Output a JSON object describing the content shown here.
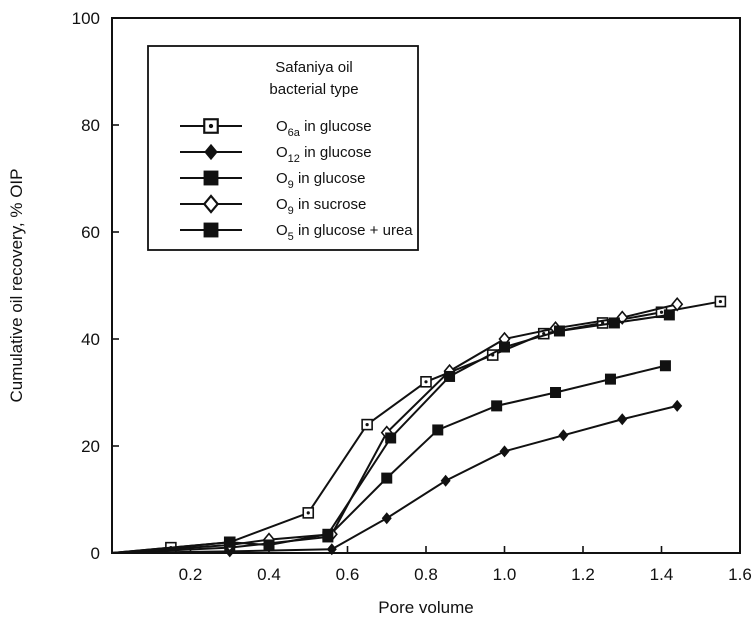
{
  "chart_data": {
    "type": "line",
    "xlabel": "Pore volume",
    "ylabel": "Cumulative oil recovery, % OIP",
    "xlim": [
      0,
      1.6
    ],
    "ylim": [
      0,
      100
    ],
    "xticks": [
      0.2,
      0.4,
      0.6,
      0.8,
      1.0,
      1.2,
      1.4,
      1.6
    ],
    "xtick_labels": [
      "0.2",
      "0.4",
      "0.6",
      "0.8",
      "1.0",
      "1.2",
      "1.4",
      "1.6"
    ],
    "yticks": [
      0,
      20,
      40,
      60,
      80,
      100
    ],
    "ytick_labels": [
      "0",
      "20",
      "40",
      "60",
      "80",
      "100"
    ],
    "grid": false,
    "legend": {
      "placement": "top-left",
      "title_line1": "Safaniya oil",
      "title_line2": "bacterial type",
      "entries": [
        {
          "prefix": "O",
          "sub": "6a",
          "suffix": " in glucose",
          "marker": "square-open-dot"
        },
        {
          "prefix": "O",
          "sub": "12",
          "suffix": " in glucose",
          "marker": "diamond-filled"
        },
        {
          "prefix": "O",
          "sub": "9",
          "suffix": " in glucose",
          "marker": "square-filled"
        },
        {
          "prefix": "O",
          "sub": "9",
          "suffix": " in sucrose",
          "marker": "diamond-open"
        },
        {
          "prefix": "O",
          "sub": "5",
          "suffix": " in glucose + urea",
          "marker": "square-filled"
        }
      ]
    },
    "series": [
      {
        "marker": "square-open-dot",
        "x": [
          0.0,
          0.15,
          0.3,
          0.5,
          0.65,
          0.8,
          0.97,
          1.1,
          1.25,
          1.4,
          1.55
        ],
        "y": [
          0,
          1,
          2,
          7.5,
          24,
          32,
          37,
          41,
          43,
          45,
          47
        ]
      },
      {
        "marker": "diamond-filled",
        "x": [
          0.0,
          0.3,
          0.56,
          0.7,
          0.85,
          1.0,
          1.15,
          1.3,
          1.44
        ],
        "y": [
          0,
          0.3,
          0.7,
          6.5,
          13.5,
          19,
          22,
          25,
          27.5
        ]
      },
      {
        "marker": "square-filled",
        "x": [
          0.0,
          0.3,
          0.55,
          0.7,
          0.83,
          0.98,
          1.13,
          1.27,
          1.41
        ],
        "y": [
          0,
          1,
          3,
          14,
          23,
          27.5,
          30,
          32.5,
          35
        ]
      },
      {
        "marker": "diamond-open",
        "x": [
          0.0,
          0.3,
          0.4,
          0.56,
          0.7,
          0.86,
          1.0,
          1.13,
          1.3,
          1.44
        ],
        "y": [
          0,
          1.5,
          2.5,
          3.5,
          22.5,
          34,
          40,
          42,
          44,
          46.5
        ]
      },
      {
        "marker": "square-filled",
        "x": [
          0.0,
          0.3,
          0.4,
          0.55,
          0.71,
          0.86,
          1.0,
          1.14,
          1.28,
          1.42
        ],
        "y": [
          0,
          2,
          1.5,
          3.5,
          21.5,
          33,
          38.5,
          41.5,
          43,
          44.5
        ]
      }
    ]
  }
}
